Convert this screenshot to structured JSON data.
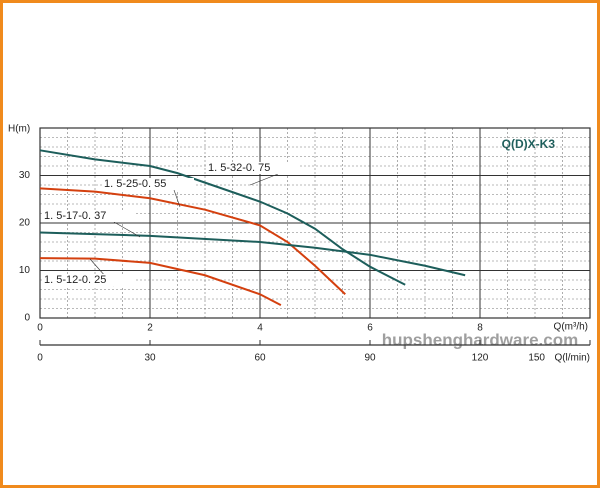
{
  "chart_data": {
    "type": "line",
    "title": "Q(D)X-K3",
    "ylabel": "H(m)",
    "xlabel": "Q(m³/h)",
    "x2label": "Q(l/min)",
    "watermark": "hupshenghardware.com",
    "xlim": [
      0,
      10
    ],
    "xticks": [
      0,
      2,
      4,
      6,
      8
    ],
    "ylim": [
      0,
      40
    ],
    "yticks": [
      0,
      10,
      20,
      30
    ],
    "x2lim": [
      0,
      150
    ],
    "x2ticks": [
      0,
      30,
      60,
      90,
      120,
      150
    ],
    "grid": true,
    "x_minor_step": 0.5,
    "y_minor_step": 2,
    "series": [
      {
        "name": "1. 5-32-0. 75",
        "color": "#1d5e5b",
        "x": [
          0,
          1,
          2,
          2.5,
          3,
          3.5,
          4,
          4.5,
          5,
          5.5,
          6,
          6.64
        ],
        "values": [
          35.3,
          33.4,
          32,
          30.5,
          28.5,
          26.5,
          24.5,
          22,
          18.8,
          14.5,
          10.8,
          7
        ]
      },
      {
        "name": "1. 5-25-0. 55",
        "color": "#d4400f",
        "x": [
          0,
          1,
          2,
          3,
          4,
          4.5,
          5,
          5.55
        ],
        "values": [
          27.3,
          26.6,
          25.2,
          22.8,
          19.5,
          16,
          11,
          5
        ]
      },
      {
        "name": "1. 5-17-0. 37",
        "color": "#1d5e5b",
        "x": [
          0,
          2,
          4,
          5,
          6,
          7,
          7.73
        ],
        "values": [
          18,
          17.3,
          16,
          14.8,
          13.3,
          11,
          9
        ]
      },
      {
        "name": "1. 5-12-0. 25",
        "color": "#d4400f",
        "x": [
          0,
          1,
          2,
          3,
          4,
          4.38
        ],
        "values": [
          12.6,
          12.5,
          11.6,
          9,
          5,
          2.7
        ]
      }
    ]
  }
}
